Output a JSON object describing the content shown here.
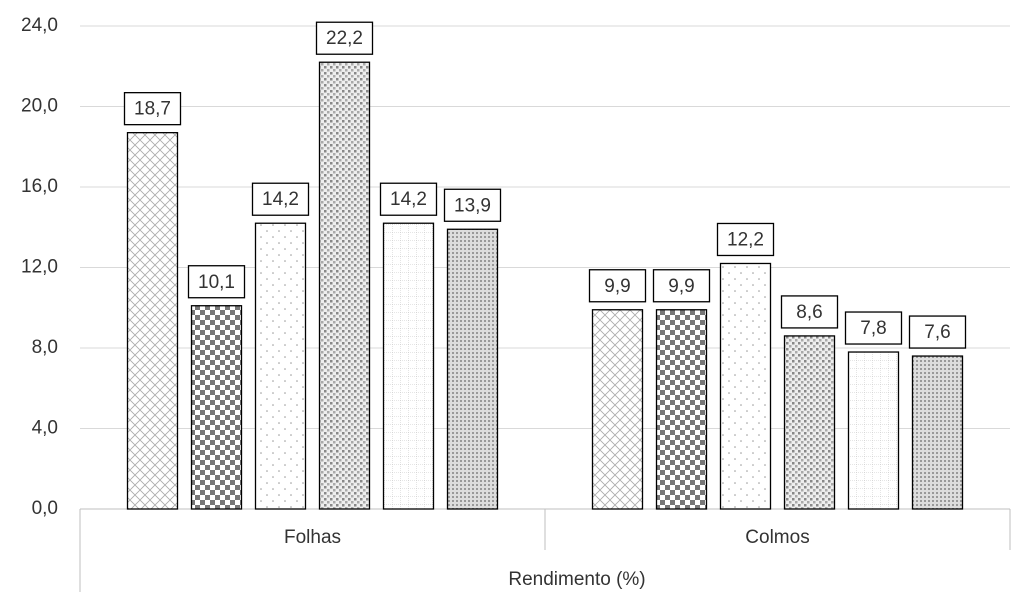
{
  "chart_data": {
    "type": "bar",
    "x_label": "Rendimento (%)",
    "categories": [
      "Folhas",
      "Colmos"
    ],
    "series": [
      {
        "pattern": "diagonal-cross",
        "values": [
          18.7,
          9.9
        ],
        "value_labels": [
          "18,7",
          "9,9"
        ]
      },
      {
        "pattern": "checker",
        "values": [
          10.1,
          9.9
        ],
        "value_labels": [
          "10,1",
          "9,9"
        ]
      },
      {
        "pattern": "sparse-dots",
        "values": [
          14.2,
          12.2
        ],
        "value_labels": [
          "14,2",
          "12,2"
        ]
      },
      {
        "pattern": "dense-dots",
        "values": [
          22.2,
          8.6
        ],
        "value_labels": [
          "22,2",
          "8,6"
        ]
      },
      {
        "pattern": "dotted-grid",
        "values": [
          14.2,
          7.8
        ],
        "value_labels": [
          "14,2",
          "7,8"
        ]
      },
      {
        "pattern": "fine-dots",
        "values": [
          13.9,
          7.6
        ],
        "value_labels": [
          "13,9",
          "7,6"
        ]
      }
    ],
    "ylim": [
      0,
      24
    ],
    "yticks": [
      {
        "value": 0,
        "label": "0,0"
      },
      {
        "value": 4,
        "label": "4,0"
      },
      {
        "value": 8,
        "label": "8,0"
      },
      {
        "value": 12,
        "label": "12,0"
      },
      {
        "value": 16,
        "label": "16,0"
      },
      {
        "value": 20,
        "label": "20,0"
      },
      {
        "value": 24,
        "label": "24,0"
      }
    ],
    "grid": true
  }
}
